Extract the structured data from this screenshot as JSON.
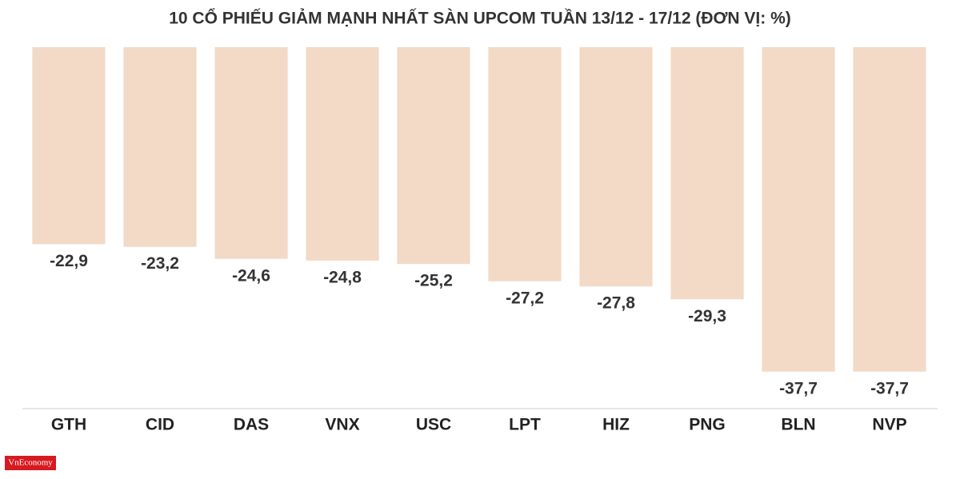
{
  "chart_data": {
    "type": "bar",
    "title": "10 CỔ PHIẾU GIẢM MẠNH NHẤT SÀN UPCOM TUẦN 13/12 - 17/12 (ĐƠN VỊ: %)",
    "categories": [
      "GTH",
      "CID",
      "DAS",
      "VNX",
      "USC",
      "LPT",
      "HIZ",
      "PNG",
      "BLN",
      "NVP"
    ],
    "values": [
      -22.9,
      -23.2,
      -24.6,
      -24.8,
      -25.2,
      -27.2,
      -27.8,
      -29.3,
      -37.7,
      -37.7
    ],
    "value_labels": [
      "-22,9",
      "-23,2",
      "-24,6",
      "-24,8",
      "-25,2",
      "-27,2",
      "-27,8",
      "-29,3",
      "-37,7",
      "-37,7"
    ],
    "color": "#f2dac7",
    "ylim": [
      -42,
      0
    ],
    "logo": "VnEconomy"
  }
}
